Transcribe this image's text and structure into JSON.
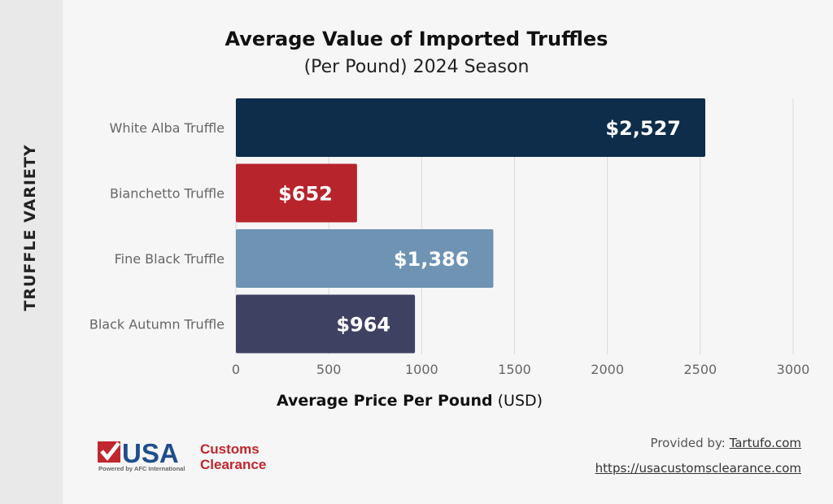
{
  "chart_data": {
    "type": "bar",
    "orientation": "horizontal",
    "title": "Average Value of Imported Truffles",
    "subtitle": "(Per Pound) 2024 Season",
    "ylabel": "TRUFFLE VARIETY",
    "xlabel_bold": "Average Price Per Pound",
    "xlabel_unit": "(USD)",
    "categories": [
      "White Alba Truffle",
      "Bianchetto Truffle",
      "Fine Black Truffle",
      "Black Autumn Truffle"
    ],
    "values": [
      2527,
      652,
      1386,
      964
    ],
    "data_labels": [
      "$2,527",
      "$652",
      "$1,386",
      "$964"
    ],
    "colors": [
      "#0d2d4a",
      "#b8242c",
      "#6e93b3",
      "#3f4163"
    ],
    "xlim": [
      0,
      3000
    ],
    "xticks": [
      0,
      500,
      1000,
      1500,
      2000,
      2500,
      3000
    ],
    "grid": true
  },
  "footer": {
    "logo_text": "USA Customs Clearance",
    "logo_tagline": "Powered by AFC International",
    "provided_prefix": "Provided by: ",
    "provided_link": "Tartufo.com",
    "url": "https://usacustomsclearance.com"
  }
}
